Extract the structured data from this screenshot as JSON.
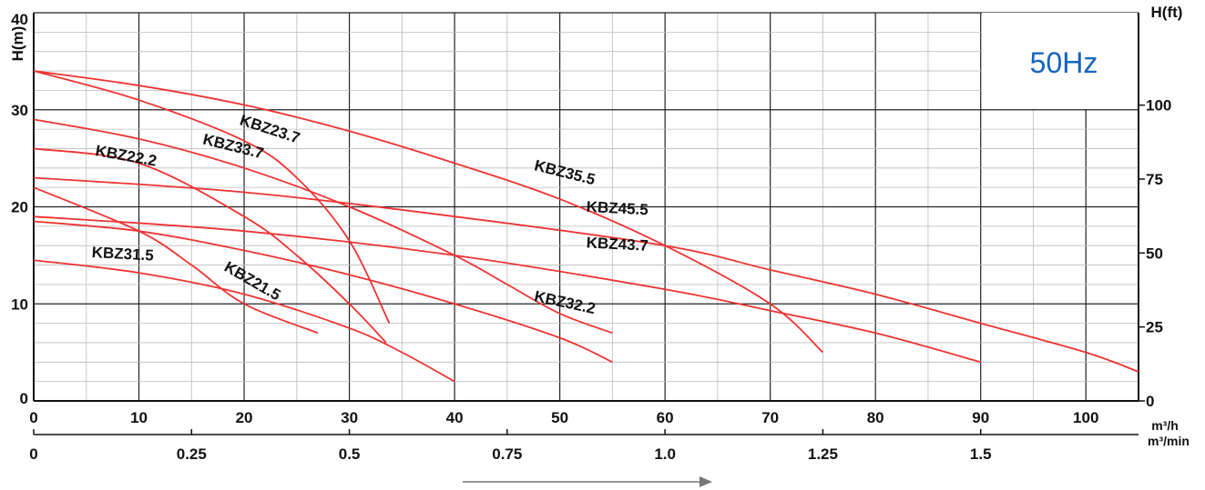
{
  "chart_data": {
    "type": "line",
    "title": "",
    "badge": "50Hz",
    "ylabel_left": "H(m)",
    "ylabel_right": "H(ft)",
    "xlabel_primary": "m³/h",
    "xlabel_secondary": "m³/min",
    "xlim": [
      0,
      105
    ],
    "ylim": [
      0,
      40
    ],
    "grid": true,
    "x_ticks_primary": [
      0,
      10,
      20,
      30,
      40,
      50,
      60,
      70,
      80,
      90,
      100
    ],
    "y_ticks_left": [
      0,
      10,
      20,
      30,
      40
    ],
    "y_ticks_right": [
      {
        "label": "0",
        "ft": 0
      },
      {
        "label": "25",
        "ft": 25
      },
      {
        "label": "50",
        "ft": 50
      },
      {
        "label": "75",
        "ft": 75
      },
      {
        "label": "100",
        "ft": 100
      }
    ],
    "x_ticks_secondary": [
      {
        "label": "0",
        "value": 0
      },
      {
        "label": "0.25",
        "value": 0.25
      },
      {
        "label": "0.5",
        "value": 0.5
      },
      {
        "label": "0.75",
        "value": 0.75
      },
      {
        "label": "1.0",
        "value": 1.0
      },
      {
        "label": "1.25",
        "value": 1.25
      },
      {
        "label": "1.5",
        "value": 1.5
      }
    ],
    "curve_color": "#ee3333",
    "badge_color": "#1565c0",
    "series": [
      {
        "name": "KBZ35.5",
        "x": [
          0,
          10,
          20,
          30,
          40,
          50,
          60,
          70,
          75
        ],
        "y": [
          34,
          32.5,
          30.5,
          27.8,
          24.5,
          20.8,
          16,
          10,
          5
        ]
      },
      {
        "name": "KBZ23.7",
        "x": [
          0,
          10,
          20,
          25,
          30,
          33.8
        ],
        "y": [
          34,
          31,
          26.8,
          23,
          16.5,
          8
        ]
      },
      {
        "name": "KBZ33.7",
        "x": [
          0,
          10,
          20,
          30,
          40,
          45,
          50,
          55
        ],
        "y": [
          29,
          27,
          24,
          20,
          15,
          12,
          9,
          7
        ]
      },
      {
        "name": "KBZ22.2",
        "x": [
          0,
          10,
          20,
          25,
          30,
          33.5
        ],
        "y": [
          26,
          24.5,
          19,
          15,
          10,
          6
        ]
      },
      {
        "name": "KBZ45.5",
        "x": [
          0,
          20,
          40,
          60,
          70,
          80,
          90,
          100,
          105
        ],
        "y": [
          23,
          21.5,
          19,
          16,
          13.5,
          11,
          8,
          5,
          3
        ]
      },
      {
        "name": "KBZ43.7",
        "x": [
          0,
          20,
          40,
          60,
          70,
          80,
          90
        ],
        "y": [
          19,
          17.5,
          15,
          11.5,
          9.3,
          7,
          4
        ]
      },
      {
        "name": "KBZ32.2",
        "x": [
          0,
          10,
          20,
          30,
          40,
          50,
          55
        ],
        "y": [
          18.5,
          17.5,
          15.5,
          13,
          10,
          6.5,
          4
        ]
      },
      {
        "name": "KBZ21.5",
        "x": [
          0,
          10,
          15,
          20,
          27
        ],
        "y": [
          22,
          17.5,
          14,
          10,
          7
        ]
      },
      {
        "name": "KBZ31.5",
        "x": [
          0,
          10,
          20,
          30,
          35,
          40
        ],
        "y": [
          14.5,
          13.2,
          11,
          7.5,
          5,
          2
        ]
      }
    ],
    "labels": [
      {
        "text": "KBZ35.5",
        "at_x": 47.5,
        "at_y": 23.8,
        "rotate": 14
      },
      {
        "text": "KBZ23.7",
        "at_x": 19.5,
        "at_y": 28.5,
        "rotate": 18
      },
      {
        "text": "KBZ33.7",
        "at_x": 16,
        "at_y": 26.5,
        "rotate": 14
      },
      {
        "text": "KBZ22.2",
        "at_x": 5.8,
        "at_y": 25.3,
        "rotate": 10
      },
      {
        "text": "KBZ45.5",
        "at_x": 52.5,
        "at_y": 19.5,
        "rotate": 3
      },
      {
        "text": "KBZ43.7",
        "at_x": 52.5,
        "at_y": 15.8,
        "rotate": 3
      },
      {
        "text": "KBZ32.2",
        "at_x": 47.5,
        "at_y": 10.3,
        "rotate": 12
      },
      {
        "text": "KBZ21.5",
        "at_x": 18,
        "at_y": 13.5,
        "rotate": 30
      },
      {
        "text": "KBZ31.5",
        "at_x": 5.5,
        "at_y": 14.8,
        "rotate": 3
      }
    ]
  }
}
